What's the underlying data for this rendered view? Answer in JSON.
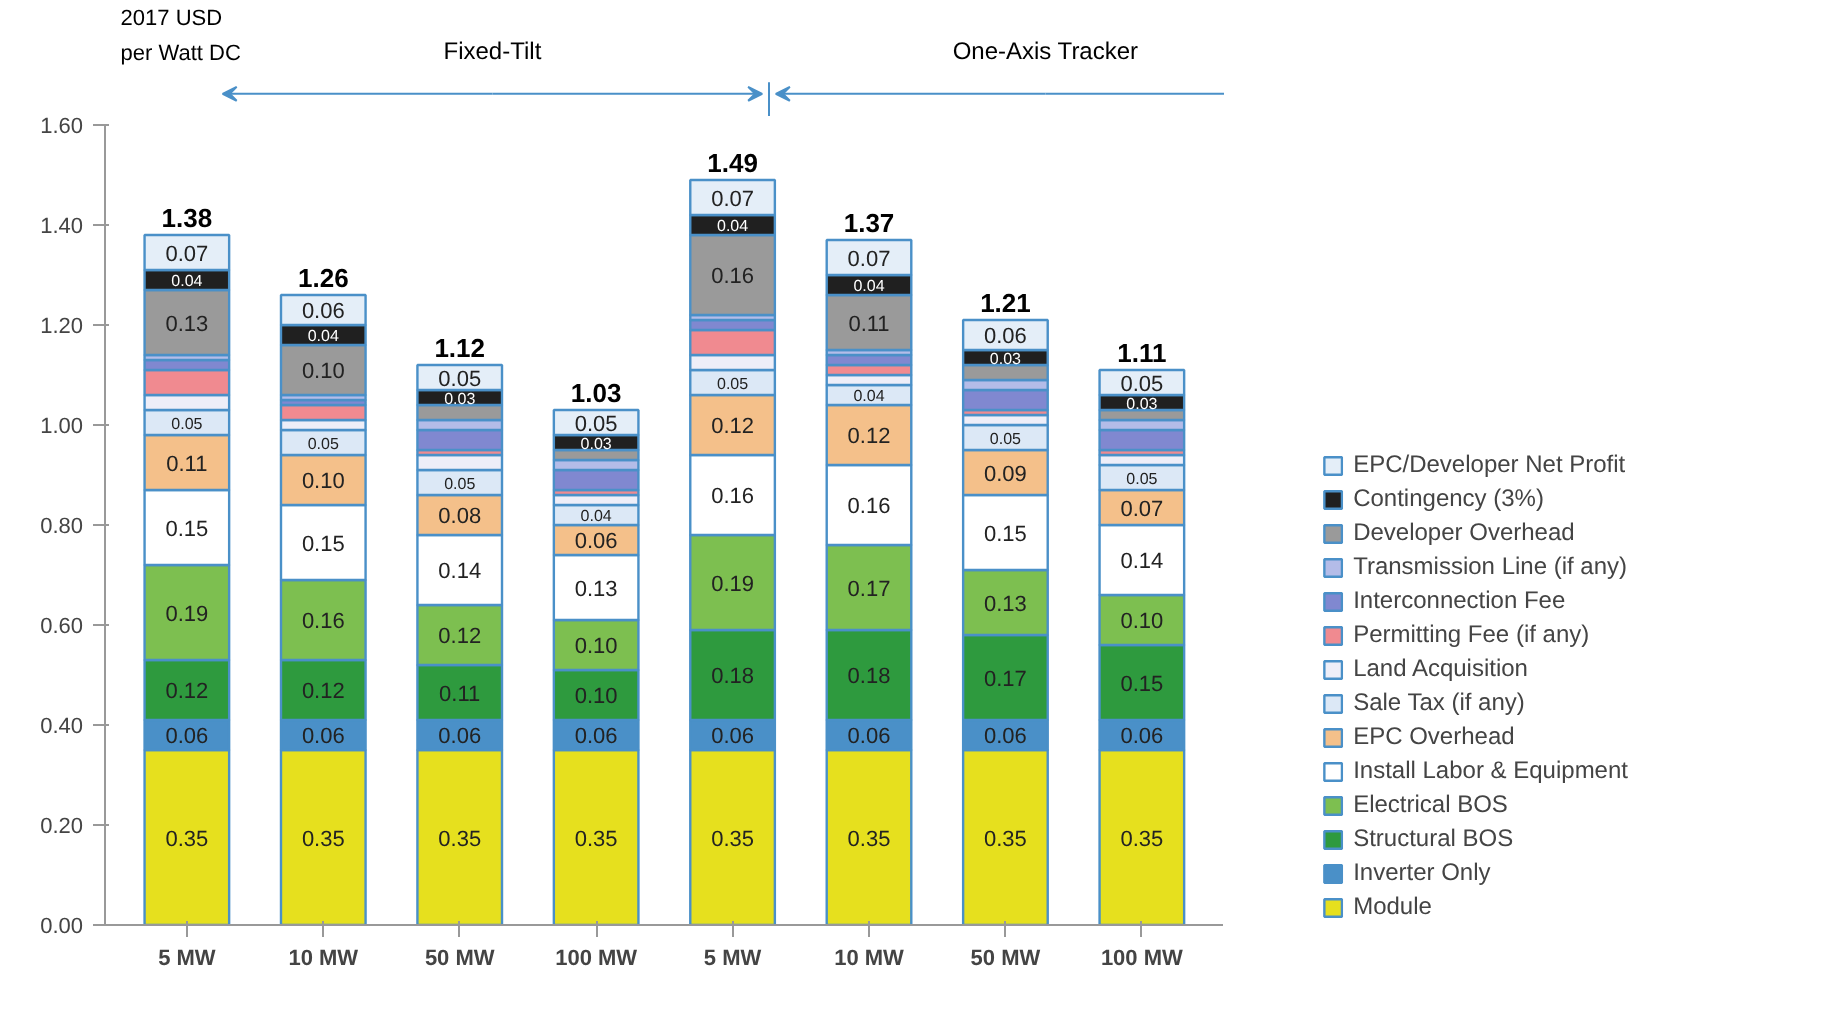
{
  "chart_data": {
    "type": "bar",
    "stacked": true,
    "ylabel": "2017 USD per Watt DC",
    "categories": [
      "5 MW",
      "10 MW",
      "50 MW",
      "100 MW",
      "5 MW",
      "10 MW",
      "50 MW",
      "100 MW"
    ],
    "annotations": [
      "Fixed-Tilt",
      "One-Axis Tracker"
    ],
    "ylim": [
      0,
      1.6
    ],
    "yticks": [
      {
        "value": 0,
        "label": "0.00"
      },
      {
        "value": 0.2,
        "label": "0.20"
      },
      {
        "value": 0.4,
        "label": "0.40"
      },
      {
        "value": 0.6,
        "label": "0.60"
      },
      {
        "value": 0.8,
        "label": "0.80"
      },
      {
        "value": 1.0,
        "label": "1.00"
      },
      {
        "value": 1.2,
        "label": "1.20"
      },
      {
        "value": 1.4,
        "label": "1.40"
      },
      {
        "value": 1.6,
        "label": "1.60"
      }
    ],
    "grid": false,
    "legend": "right",
    "totals": [
      "1.38",
      "1.26",
      "1.12",
      "1.03",
      "1.49",
      "1.37",
      "1.21",
      "1.11"
    ],
    "series": [
      {
        "name": "Module",
        "color": "#e6e01e",
        "values": [
          0.35,
          0.35,
          0.35,
          0.35,
          0.35,
          0.35,
          0.35,
          0.35
        ],
        "value_labels": [
          "0.35",
          "0.35",
          "0.35",
          "0.35",
          "0.35",
          "0.35",
          "0.35",
          "0.35"
        ]
      },
      {
        "name": "Inverter Only",
        "color": "#4a90c8",
        "values": [
          0.06,
          0.06,
          0.06,
          0.06,
          0.06,
          0.06,
          0.06,
          0.06
        ],
        "value_labels": [
          "0.06",
          "0.06",
          "0.06",
          "0.06",
          "0.06",
          "0.06",
          "0.06",
          "0.06"
        ]
      },
      {
        "name": "Structural BOS",
        "color": "#2e9a3e",
        "values": [
          0.12,
          0.12,
          0.11,
          0.1,
          0.18,
          0.18,
          0.17,
          0.15
        ],
        "value_labels": [
          "0.12",
          "0.12",
          "0.11",
          "0.10",
          "0.18",
          "0.18",
          "0.17",
          "0.15"
        ]
      },
      {
        "name": "Electrical BOS",
        "color": "#7dbf50",
        "values": [
          0.19,
          0.16,
          0.12,
          0.1,
          0.19,
          0.17,
          0.13,
          0.1
        ],
        "value_labels": [
          "0.19",
          "0.16",
          "0.12",
          "0.10",
          "0.19",
          "0.17",
          "0.13",
          "0.10"
        ]
      },
      {
        "name": "Install Labor & Equipment",
        "color": "#ffffff",
        "values": [
          0.15,
          0.15,
          0.14,
          0.13,
          0.16,
          0.16,
          0.15,
          0.14
        ],
        "value_labels": [
          "0.15",
          "0.15",
          "0.14",
          "0.13",
          "0.16",
          "0.16",
          "0.15",
          "0.14"
        ]
      },
      {
        "name": "EPC Overhead",
        "color": "#f4c08a",
        "values": [
          0.11,
          0.1,
          0.08,
          0.06,
          0.12,
          0.12,
          0.09,
          0.07
        ],
        "value_labels": [
          "0.11",
          "0.10",
          "0.08",
          "0.06",
          "0.12",
          "0.12",
          "0.09",
          "0.07"
        ]
      },
      {
        "name": "Sale Tax (if any)",
        "color": "#dce8f6",
        "values": [
          0.05,
          0.05,
          0.05,
          0.04,
          0.05,
          0.04,
          0.05,
          0.05
        ],
        "value_labels": [
          "0.05",
          "0.05",
          "0.05",
          "0.04",
          "0.05",
          "0.04",
          "0.05",
          "0.05"
        ]
      },
      {
        "name": "Land Acquisition",
        "color": "#eeeef8",
        "values": [
          0.03,
          0.02,
          0.03,
          0.02,
          0.03,
          0.02,
          0.02,
          0.02
        ]
      },
      {
        "name": "Permitting Fee (if any)",
        "color": "#f08a90",
        "values": [
          0.05,
          0.03,
          0.01,
          0.01,
          0.05,
          0.02,
          0.01,
          0.01
        ]
      },
      {
        "name": "Interconnection Fee",
        "color": "#8088d0",
        "values": [
          0.02,
          0.01,
          0.04,
          0.04,
          0.02,
          0.02,
          0.04,
          0.04
        ]
      },
      {
        "name": "Transmission Line (if any)",
        "color": "#b4bce8",
        "values": [
          0.01,
          0.01,
          0.02,
          0.02,
          0.01,
          0.01,
          0.02,
          0.02
        ]
      },
      {
        "name": "Developer Overhead",
        "color": "#9a9a9a",
        "values": [
          0.13,
          0.1,
          0.03,
          0.02,
          0.16,
          0.11,
          0.03,
          0.02
        ],
        "value_labels": [
          "0.13",
          "0.10",
          null,
          null,
          "0.16",
          "0.11",
          null,
          null
        ]
      },
      {
        "name": "Contingency (3%)",
        "color": "#202020",
        "values": [
          0.04,
          0.04,
          0.03,
          0.03,
          0.04,
          0.04,
          0.03,
          0.03
        ],
        "value_labels": [
          "0.04",
          "0.04",
          "0.03",
          "0.03",
          "0.04",
          "0.04",
          "0.03",
          "0.03"
        ]
      },
      {
        "name": "EPC/Developer Net Profit",
        "color": "#e4eef8",
        "values": [
          0.07,
          0.06,
          0.05,
          0.05,
          0.07,
          0.07,
          0.06,
          0.05
        ],
        "value_labels": [
          "0.07",
          "0.06",
          "0.05",
          "0.05",
          "0.07",
          "0.07",
          "0.06",
          "0.05"
        ]
      }
    ]
  }
}
